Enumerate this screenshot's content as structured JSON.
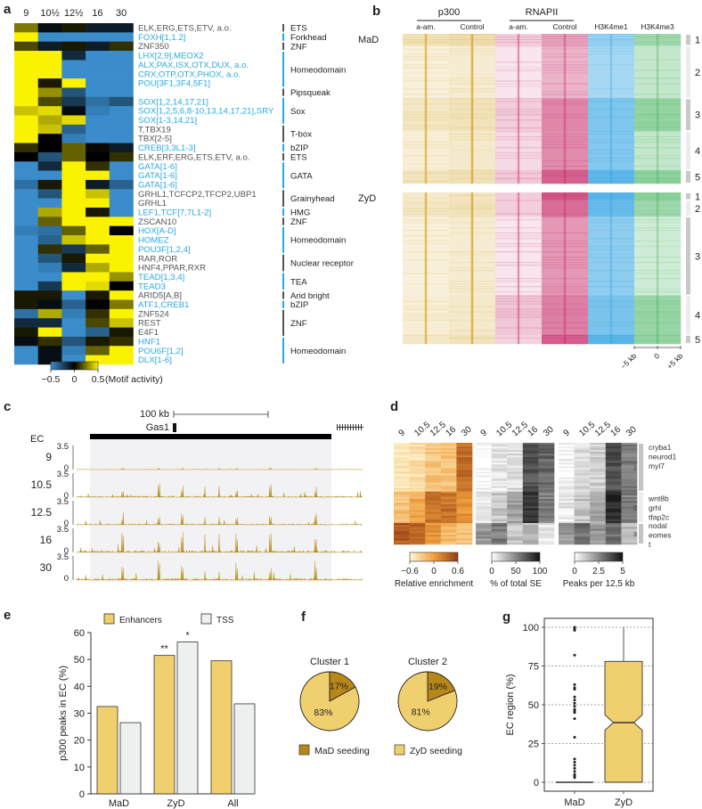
{
  "panels": {
    "a": "a",
    "b": "b",
    "c": "c",
    "d": "d",
    "e": "e",
    "f": "f",
    "g": "g"
  },
  "colors": {
    "blue": "#3a8ccb",
    "yellow": "#fbf200",
    "cyan_text": "#29a9e1",
    "grey_text": "#555555",
    "p300": "#d4a62a",
    "rnapii": "#c2185b",
    "h3k4me1": "#1e9be0",
    "h3k4me3": "#2eaa4a",
    "track": "#b8901e",
    "enh": "#f0cf6e",
    "tss": "#eef0f0",
    "mad_seed": "#b8871a",
    "zyd_seed": "#f0cf6e"
  },
  "chart_data": [
    {
      "id": "a",
      "type": "heatmap",
      "columns": [
        "9",
        "10½",
        "12½",
        "16",
        "30"
      ],
      "rows": [
        {
          "label": "ELK,ERG,ETS,ETV, a.o.",
          "cyan": false,
          "values": [
            0.25,
            -0.05,
            0.05,
            -0.1,
            -0.1
          ]
        },
        {
          "label": "FOXH[1,1.2]",
          "cyan": true,
          "values": [
            0.5,
            -0.5,
            -0.5,
            -0.5,
            -0.5
          ]
        },
        {
          "label": "ZNF350",
          "cyan": false,
          "values": [
            0.15,
            -0.1,
            0.05,
            -0.1,
            0.1
          ]
        },
        {
          "label": "LHX[2,9],MEOX2",
          "cyan": true,
          "values": [
            0.5,
            0.5,
            -0.15,
            -0.5,
            -0.5
          ]
        },
        {
          "label": "ALX,PAX,ISX,OTX,DUX, a.o.",
          "cyan": true,
          "values": [
            0.5,
            0.5,
            -0.5,
            -0.5,
            -0.5
          ]
        },
        {
          "label": "CRX,OTP,OTX,PHOX, a.o.",
          "cyan": true,
          "values": [
            0.5,
            0.5,
            -0.5,
            -0.5,
            -0.5
          ]
        },
        {
          "label": "POU[3F1,3F4,5F1]",
          "cyan": true,
          "values": [
            0.5,
            0.05,
            0.5,
            -0.5,
            -0.5
          ]
        },
        {
          "label": "",
          "cyan": false,
          "values": [
            0.5,
            0.3,
            -0.3,
            -0.5,
            -0.5
          ]
        },
        {
          "label": "SOX[1,2,14,17,21]",
          "cyan": true,
          "values": [
            0.5,
            0.15,
            -0.2,
            -0.4,
            -0.3
          ]
        },
        {
          "label": "SOX[1,2,5,6,8-10,13,14,17,21],SRY",
          "cyan": true,
          "values": [
            0.4,
            0.45,
            -0.05,
            -0.45,
            -0.5
          ]
        },
        {
          "label": "SOX[1-3,14,21]",
          "cyan": true,
          "values": [
            0.5,
            0.35,
            0.45,
            -0.5,
            -0.5
          ]
        },
        {
          "label": "T,TBX19",
          "cyan": false,
          "values": [
            0.5,
            0.4,
            -0.35,
            -0.5,
            -0.5
          ]
        },
        {
          "label": "TBX[2-5]",
          "cyan": false,
          "values": [
            0.5,
            0.0,
            -0.45,
            -0.5,
            -0.5
          ]
        },
        {
          "label": "CREB[3,3L1-3]",
          "cyan": true,
          "values": [
            0.1,
            0.0,
            0.2,
            0.02,
            -0.1
          ]
        },
        {
          "label": "ELK,ERF,ERG,ETS,ETV, a.o.",
          "cyan": false,
          "values": [
            0.0,
            -0.3,
            0.2,
            0.0,
            0.1
          ]
        },
        {
          "label": "GATA[1-6]",
          "cyan": true,
          "values": [
            -0.5,
            -0.15,
            0.5,
            0.1,
            -0.5
          ]
        },
        {
          "label": "GATA[1-6]",
          "cyan": true,
          "values": [
            -0.5,
            -0.5,
            0.5,
            0.5,
            -0.5
          ]
        },
        {
          "label": "GATA[1-6]",
          "cyan": true,
          "values": [
            -0.4,
            0.05,
            0.5,
            -0.1,
            -0.35
          ]
        },
        {
          "label": "GRHL1,TCFCP2,TFCP2,UBP1",
          "cyan": false,
          "values": [
            -0.5,
            -0.3,
            0.5,
            0.4,
            -0.5
          ]
        },
        {
          "label": "GRHL1",
          "cyan": false,
          "values": [
            -0.5,
            -0.5,
            0.5,
            0.5,
            -0.5
          ]
        },
        {
          "label": "LEF1,TCF[7,7L1-2]",
          "cyan": true,
          "values": [
            -0.5,
            0.35,
            0.5,
            0.05,
            -0.5
          ]
        },
        {
          "label": "ZSCAN10",
          "cyan": false,
          "values": [
            -0.5,
            0.2,
            0.5,
            0.5,
            0.5
          ]
        },
        {
          "label": "HOX[A-D]",
          "cyan": true,
          "values": [
            -0.45,
            -0.4,
            0.2,
            0.5,
            0.0
          ]
        },
        {
          "label": "HOMEZ",
          "cyan": true,
          "values": [
            -0.5,
            -0.35,
            0.4,
            0.5,
            0.5
          ]
        },
        {
          "label": "POU3F[1,2,4]",
          "cyan": true,
          "values": [
            -0.5,
            0.1,
            -0.2,
            0.2,
            0.5
          ]
        },
        {
          "label": "RAR,ROR",
          "cyan": false,
          "values": [
            -0.5,
            -0.3,
            0.05,
            0.5,
            0.5
          ]
        },
        {
          "label": "HNF4,PPAR,RXR",
          "cyan": false,
          "values": [
            -0.5,
            -0.45,
            -0.15,
            0.35,
            0.5
          ]
        },
        {
          "label": "TEAD[1,3,4]",
          "cyan": true,
          "values": [
            -0.5,
            -0.5,
            0.5,
            0.5,
            0.3
          ]
        },
        {
          "label": "TEAD3",
          "cyan": true,
          "values": [
            -0.5,
            -0.2,
            0.5,
            0.45,
            0.0
          ]
        },
        {
          "label": "ARID5[A,B]",
          "cyan": false,
          "values": [
            0.05,
            0.05,
            -0.5,
            0.05,
            0.5
          ]
        },
        {
          "label": "ATF1,CREB1",
          "cyan": true,
          "values": [
            0.05,
            -0.05,
            -0.35,
            0.0,
            0.25
          ]
        },
        {
          "label": "ZNF524",
          "cyan": false,
          "values": [
            -0.4,
            0.35,
            -0.45,
            0.1,
            0.5
          ]
        },
        {
          "label": "REST",
          "cyan": false,
          "values": [
            -0.15,
            -0.15,
            -0.5,
            0.15,
            0.4
          ]
        },
        {
          "label": "E4F1",
          "cyan": false,
          "values": [
            0.05,
            0.5,
            -0.5,
            -0.35,
            0.05
          ]
        },
        {
          "label": "HNF1",
          "cyan": true,
          "values": [
            -0.05,
            0.1,
            -0.3,
            0.05,
            0.1
          ]
        },
        {
          "label": "POU6F[1,2]",
          "cyan": true,
          "values": [
            -0.5,
            -0.05,
            -0.45,
            0.2,
            0.5
          ]
        },
        {
          "label": "DLX[1-6]",
          "cyan": true,
          "values": [
            -0.5,
            -0.05,
            -0.5,
            0.5,
            0.5
          ]
        }
      ],
      "families": [
        {
          "label": "ETS",
          "start": 0,
          "end": 0,
          "cyan": false
        },
        {
          "label": "Forkhead",
          "start": 1,
          "end": 1,
          "cyan": true
        },
        {
          "label": "ZNF",
          "start": 2,
          "end": 2,
          "cyan": false
        },
        {
          "label": "Homeodomain",
          "start": 3,
          "end": 6,
          "cyan": true
        },
        {
          "label": "Pipsqueak",
          "start": 7,
          "end": 7,
          "cyan": false
        },
        {
          "label": "Sox",
          "start": 8,
          "end": 10,
          "cyan": true
        },
        {
          "label": "T-box",
          "start": 11,
          "end": 12,
          "cyan": false
        },
        {
          "label": "bZIP",
          "start": 13,
          "end": 13,
          "cyan": true
        },
        {
          "label": "ETS",
          "start": 14,
          "end": 14,
          "cyan": false
        },
        {
          "label": "GATA",
          "start": 15,
          "end": 17,
          "cyan": true
        },
        {
          "label": "Grainyhead",
          "start": 18,
          "end": 19,
          "cyan": false
        },
        {
          "label": "HMG",
          "start": 20,
          "end": 20,
          "cyan": true
        },
        {
          "label": "ZNF",
          "start": 21,
          "end": 21,
          "cyan": false
        },
        {
          "label": "Homeodomain",
          "start": 22,
          "end": 24,
          "cyan": true
        },
        {
          "label": "Nuclear receptor",
          "start": 25,
          "end": 26,
          "cyan": false
        },
        {
          "label": "TEA",
          "start": 27,
          "end": 28,
          "cyan": true
        },
        {
          "label": "Arid bright",
          "start": 29,
          "end": 29,
          "cyan": false
        },
        {
          "label": "bZIP",
          "start": 30,
          "end": 30,
          "cyan": true
        },
        {
          "label": "ZNF",
          "start": 31,
          "end": 33,
          "cyan": false
        },
        {
          "label": "Homeodomain",
          "start": 34,
          "end": 36,
          "cyan": true
        }
      ],
      "colorbar": {
        "ticks": [
          "−0.5",
          "0",
          "0.5"
        ],
        "label": "(Motif activity)",
        "range": [
          -0.5,
          0.5
        ]
      }
    },
    {
      "id": "b",
      "type": "heatmap",
      "groups": [
        {
          "label": "p300",
          "cols": [
            0,
            1
          ]
        },
        {
          "label": "RNAPII",
          "cols": [
            2,
            3
          ]
        }
      ],
      "columns": [
        "a-am.",
        "Control",
        "a-am.",
        "Control",
        "H3K4me1",
        "H3K4me3"
      ],
      "conditions": [
        {
          "label": "MaD",
          "clusters": [
            "1",
            "2",
            "3",
            "4",
            "5"
          ],
          "cluster_fractions": [
            0.08,
            0.35,
            0.22,
            0.26,
            0.09
          ]
        },
        {
          "label": "ZyD",
          "clusters": [
            "1",
            "2",
            "3",
            "4",
            "5"
          ],
          "cluster_fractions": [
            0.05,
            0.11,
            0.52,
            0.26,
            0.06
          ]
        }
      ],
      "axis_ticks": [
        "−5 kb",
        "0",
        "+5 kb"
      ]
    },
    {
      "id": "c",
      "type": "area",
      "scale_label": "100 kb",
      "gene_label": "Gas1",
      "region_label": "EC",
      "tracks": [
        {
          "label": "9",
          "ymax": "3.5",
          "ymin": "0",
          "peak_scale": 0.08
        },
        {
          "label": "10.5",
          "ymax": "3.5",
          "ymin": "0",
          "peak_scale": 0.6
        },
        {
          "label": "12.5",
          "ymax": "3.5",
          "ymin": "0",
          "peak_scale": 0.55
        },
        {
          "label": "16",
          "ymax": "3.5",
          "ymin": "0",
          "peak_scale": 1.0
        },
        {
          "label": "30",
          "ymax": "3.5",
          "ymin": "0",
          "peak_scale": 0.9
        }
      ]
    },
    {
      "id": "d",
      "type": "heatmap",
      "blocks": [
        {
          "columns": [
            "9",
            "10.5",
            "12.5",
            "16",
            "30"
          ],
          "colorbar_ticks": [
            "−0.6",
            "0",
            "0.6"
          ],
          "colorbar_label": "Relative enrichment"
        },
        {
          "columns": [
            "9",
            "10.5",
            "12.5",
            "16",
            "30"
          ],
          "colorbar_ticks": [
            "0",
            "50",
            "100"
          ],
          "colorbar_label": "% of total SE"
        },
        {
          "columns": [
            "9",
            "10.5",
            "12.5",
            "16",
            "30"
          ],
          "colorbar_ticks": [
            "0",
            "2.5",
            "5"
          ],
          "colorbar_label": "Peaks per 12,5 kb"
        }
      ],
      "clusters": [
        {
          "label": "1",
          "genes": [
            "cryba1",
            "neurod1",
            "myl7"
          ],
          "fraction": 0.48,
          "means": [
            [
              0.1,
              0.15,
              0.3,
              0.3,
              0.75
            ],
            [
              0.02,
              0.1,
              0.15,
              0.75,
              0.65
            ],
            [
              0.05,
              0.15,
              0.2,
              0.75,
              0.55
            ]
          ]
        },
        {
          "label": "2",
          "genes": [
            "wnt8b",
            "grhl",
            "tfap2c"
          ],
          "fraction": 0.31,
          "means": [
            [
              0.3,
              0.45,
              0.7,
              0.72,
              0.55
            ],
            [
              0.08,
              0.25,
              0.4,
              0.85,
              0.55
            ],
            [
              0.1,
              0.25,
              0.4,
              0.9,
              0.55
            ]
          ]
        },
        {
          "label": "3",
          "genes": [
            "nodal",
            "eomes",
            "t"
          ],
          "fraction": 0.21,
          "means": [
            [
              0.85,
              0.8,
              0.55,
              0.35,
              0.3
            ],
            [
              0.45,
              0.55,
              0.25,
              0.3,
              0.1
            ],
            [
              0.45,
              0.6,
              0.45,
              0.6,
              0.3
            ]
          ]
        }
      ]
    },
    {
      "id": "e",
      "type": "bar",
      "categories": [
        "MaD",
        "ZyD",
        "All"
      ],
      "series": [
        {
          "name": "Enhancers",
          "values": [
            32.5,
            51.5,
            49.5
          ]
        },
        {
          "name": "TSS",
          "values": [
            26.5,
            56.5,
            33.5
          ]
        }
      ],
      "annotations": [
        {
          "category": "ZyD",
          "series": "Enhancers",
          "text": "**"
        },
        {
          "category": "ZyD",
          "series": "TSS",
          "text": "*"
        }
      ],
      "ylabel": "p300 peaks in EC (%)",
      "yticks": [
        0,
        10,
        20,
        30,
        40,
        50,
        60
      ],
      "ylim": [
        0,
        60
      ],
      "legend": "top"
    },
    {
      "id": "f",
      "type": "pie",
      "pies": [
        {
          "title": "Cluster 1",
          "slices": [
            {
              "name": "MaD seeding",
              "value": 17,
              "label": "17%"
            },
            {
              "name": "ZyD seeding",
              "value": 83,
              "label": "83%"
            }
          ]
        },
        {
          "title": "Cluster 2",
          "slices": [
            {
              "name": "MaD seeding",
              "value": 19,
              "label": "19%"
            },
            {
              "name": "ZyD seeding",
              "value": 81,
              "label": "81%"
            }
          ]
        }
      ],
      "legend": [
        "MaD seeding",
        "ZyD seeding"
      ]
    },
    {
      "id": "g",
      "type": "box",
      "categories": [
        "MaD",
        "ZyD"
      ],
      "ylabel": "EC region (%)",
      "yticks": [
        0,
        25,
        50,
        75,
        100
      ],
      "ylim": [
        0,
        100
      ],
      "grid": true,
      "boxes": [
        {
          "name": "MaD",
          "q1": 0,
          "median": 0,
          "q3": 0,
          "whisker_low": 0,
          "whisker_high": 0,
          "outliers": [
            100,
            99,
            98,
            82,
            63,
            61,
            60,
            55,
            53,
            51,
            49,
            47,
            46,
            45,
            41,
            29,
            15,
            13,
            11,
            9,
            7,
            5,
            4,
            3
          ]
        },
        {
          "name": "ZyD",
          "q1": 0,
          "median": 38.5,
          "q3": 78,
          "whisker_low": 0,
          "whisker_high": 100,
          "notch_low": 33.5,
          "notch_high": 43.5,
          "outliers": []
        }
      ]
    }
  ]
}
